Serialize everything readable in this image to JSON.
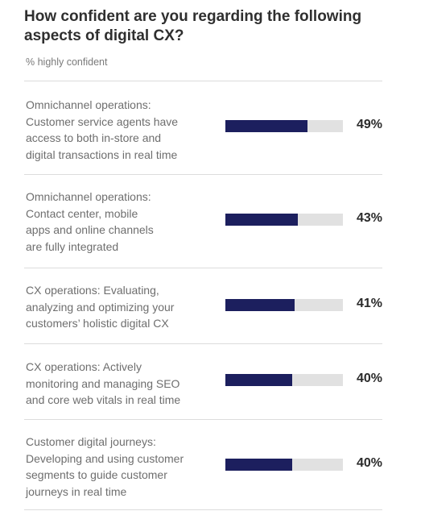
{
  "chart_data": {
    "type": "bar",
    "orientation": "horizontal",
    "title": "How confident are you regarding the following aspects of digital CX?",
    "subtitle": "% highly confident",
    "xlim": [
      0,
      70
    ],
    "grid": false,
    "categories": [
      "Omnichannel operations: Customer service agents have access to both in-store and digital transactions in real time",
      "Omnichannel operations: Contact center, mobile apps and online channels are fully integrated",
      "CX operations: Evaluating, analyzing and optimizing your customers’ holistic digital CX",
      "CX operations: Actively monitoring and managing SEO and core web vitals in real time",
      "Customer digital journeys: Developing and using customer segments to guide customer journeys in real time"
    ],
    "values": [
      49,
      43,
      41,
      40,
      40
    ],
    "value_labels": [
      "49%",
      "43%",
      "41%",
      "40%",
      "40%"
    ]
  },
  "colors": {
    "bar": "#1c1f5e",
    "track": "#e1e1e1",
    "divider": "#dcdcdc"
  },
  "rows": [
    {
      "lines": [
        "Omnichannel operations:",
        "Customer service agents have",
        "access to both in-store and",
        "digital transactions in real time"
      ]
    },
    {
      "lines": [
        "Omnichannel operations:",
        "Contact center, mobile",
        "apps and online channels",
        "are fully integrated"
      ]
    },
    {
      "lines": [
        "CX operations: Evaluating,",
        "analyzing and optimizing your",
        "customers’ holistic digital CX"
      ]
    },
    {
      "lines": [
        "CX operations: Actively",
        "monitoring and managing SEO",
        "and core web vitals in real time"
      ]
    },
    {
      "lines": [
        "Customer digital journeys:",
        "Developing and using customer",
        "segments to guide customer",
        "journeys in real time"
      ]
    }
  ]
}
